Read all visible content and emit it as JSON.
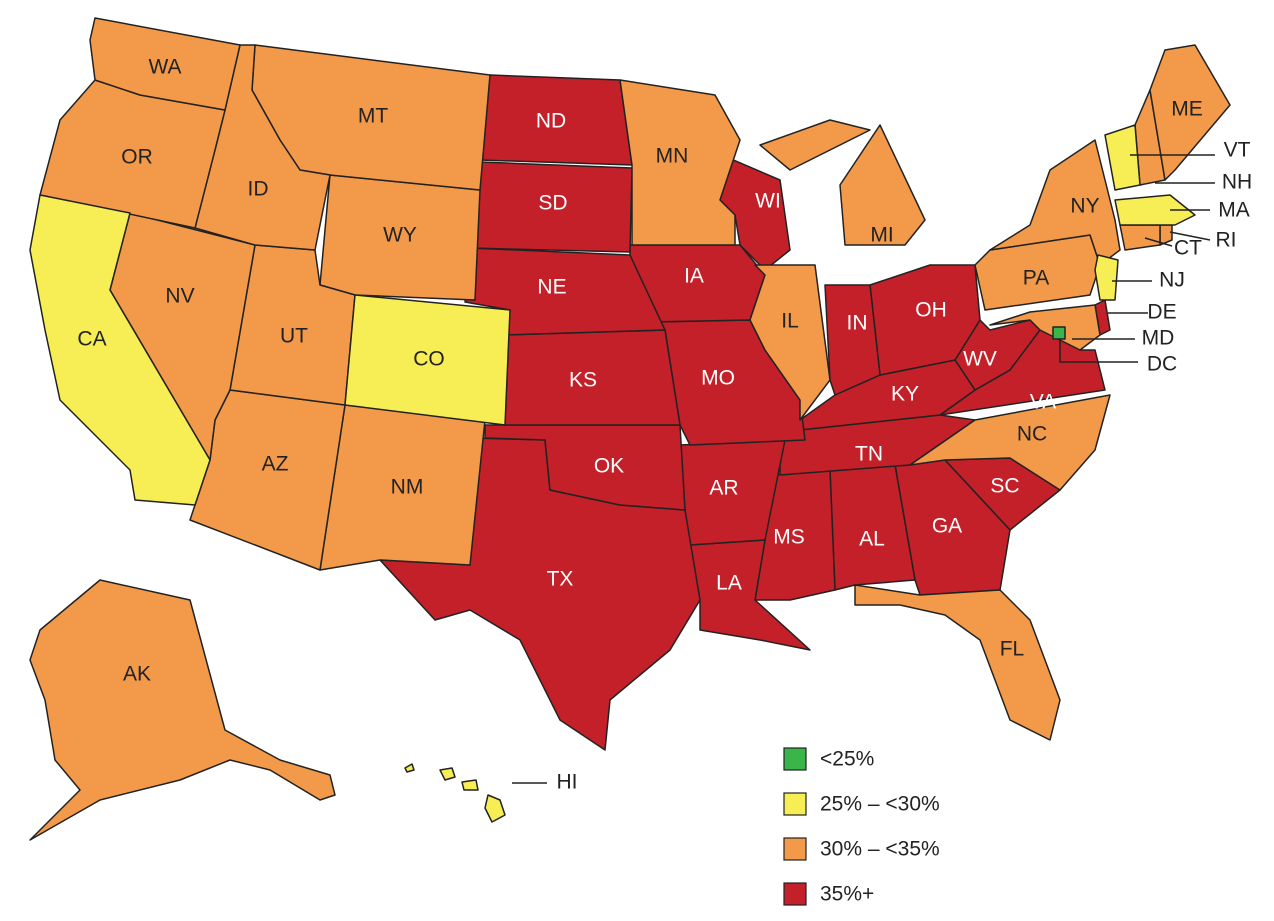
{
  "legend": [
    {
      "label": "<25%",
      "color": "#3ab54a",
      "states": [
        "DC"
      ]
    },
    {
      "label": "25% – <30%",
      "color": "#f7ee55",
      "states": [
        "CA",
        "CO",
        "VT",
        "MA",
        "NJ",
        "HI"
      ]
    },
    {
      "label": "30% – <35%",
      "color": "#f39a4a",
      "states": [
        "WA",
        "OR",
        "ID",
        "MT",
        "NV",
        "UT",
        "WY",
        "AZ",
        "NM",
        "AK",
        "MN",
        "IL",
        "MI",
        "NY",
        "PA",
        "ME",
        "NH",
        "CT",
        "RI",
        "NC",
        "FL",
        "MD"
      ]
    },
    {
      "label": "35%+",
      "color": "#c3202a",
      "states": [
        "ND",
        "SD",
        "NE",
        "KS",
        "OK",
        "TX",
        "IA",
        "MO",
        "AR",
        "LA",
        "WI",
        "IN",
        "OH",
        "KY",
        "TN",
        "MS",
        "AL",
        "GA",
        "SC",
        "WV",
        "VA",
        "DE"
      ]
    }
  ]
}
